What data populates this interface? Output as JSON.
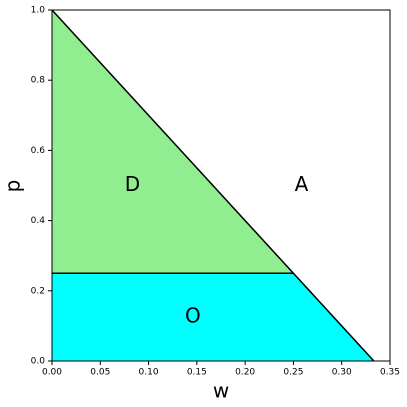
{
  "chart_data": {
    "type": "region",
    "xlabel": "w",
    "ylabel": "p",
    "xlim": [
      0,
      0.35
    ],
    "ylim": [
      0,
      1
    ],
    "xticks": [
      {
        "value": 0,
        "label": "0.00"
      },
      {
        "value": 0.05,
        "label": "0.05"
      },
      {
        "value": 0.1,
        "label": "0.10"
      },
      {
        "value": 0.15,
        "label": "0.15"
      },
      {
        "value": 0.2,
        "label": "0.20"
      },
      {
        "value": 0.25,
        "label": "0.25"
      },
      {
        "value": 0.3,
        "label": "0.30"
      },
      {
        "value": 0.35,
        "label": "0.35"
      }
    ],
    "yticks": [
      {
        "value": 0,
        "label": "0.0"
      },
      0.2,
      0.4,
      0.6,
      0.8,
      {
        "value": 1,
        "label": "1.0"
      }
    ],
    "regions": [
      {
        "name": "A",
        "color": "#ffffff",
        "x": [
          0,
          0.35,
          0.35,
          0.3333
        ],
        "y": [
          1,
          1,
          0,
          0
        ]
      },
      {
        "name": "D",
        "color": "#90ee90",
        "x": [
          0,
          0,
          0.25
        ],
        "y": [
          1,
          0.25,
          0.25
        ]
      },
      {
        "name": "O",
        "color": "#00ffff",
        "x": [
          0,
          0.3333,
          0.25,
          0
        ],
        "y": [
          0,
          0,
          0.25,
          0.25
        ]
      }
    ],
    "lines": [
      {
        "color": "#000000",
        "x": [
          0,
          0.3333
        ],
        "y": [
          1,
          0
        ]
      },
      {
        "color": "#000000",
        "x": [
          0,
          0.25
        ],
        "y": [
          0.25,
          0.25
        ]
      }
    ]
  }
}
